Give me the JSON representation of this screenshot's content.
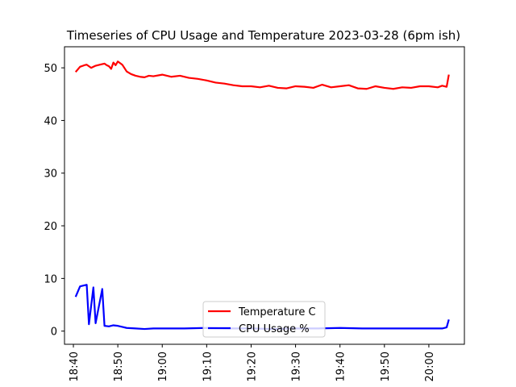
{
  "chart_data": {
    "type": "line",
    "title": "Timeseries of CPU Usage and Temperature 2023-03-28 (6pm ish)",
    "xlabel": "",
    "ylabel": "",
    "x_tick_labels": [
      "18:40",
      "18:50",
      "19:00",
      "19:10",
      "19:20",
      "19:30",
      "19:40",
      "19:50",
      "20:00"
    ],
    "y_tick_labels": [
      "0",
      "10",
      "20",
      "30",
      "40",
      "50"
    ],
    "xlim": [
      "18:38",
      "20:08"
    ],
    "ylim": [
      -2.5,
      54
    ],
    "grid": false,
    "legend_position": "bottom-center",
    "series": [
      {
        "name": "Temperature C",
        "color": "#ff0000",
        "x": [
          "18:40:30",
          "18:41:30",
          "18:42:30",
          "18:43:00",
          "18:44:00",
          "18:45:00",
          "18:46:00",
          "18:47:00",
          "18:47:30",
          "18:48:00",
          "18:48:30",
          "18:49:00",
          "18:49:30",
          "18:50:00",
          "18:51:00",
          "18:52:00",
          "18:53:00",
          "18:54:00",
          "18:55:00",
          "18:56:00",
          "18:57:00",
          "18:58:00",
          "19:00:00",
          "19:02:00",
          "19:04:00",
          "19:06:00",
          "19:08:00",
          "19:10:00",
          "19:12:00",
          "19:14:00",
          "19:16:00",
          "19:18:00",
          "19:20:00",
          "19:22:00",
          "19:24:00",
          "19:26:00",
          "19:28:00",
          "19:30:00",
          "19:32:00",
          "19:34:00",
          "19:36:00",
          "19:38:00",
          "19:40:00",
          "19:42:00",
          "19:44:00",
          "19:46:00",
          "19:48:00",
          "19:50:00",
          "19:52:00",
          "19:54:00",
          "19:56:00",
          "19:58:00",
          "20:00:00",
          "20:02:00",
          "20:03:00",
          "20:04:00",
          "20:04:30"
        ],
        "y": [
          49.2,
          50.2,
          50.5,
          50.6,
          50.0,
          50.4,
          50.6,
          50.8,
          50.5,
          50.3,
          49.8,
          51.0,
          50.5,
          51.2,
          50.6,
          49.3,
          48.8,
          48.5,
          48.3,
          48.2,
          48.5,
          48.4,
          48.7,
          48.3,
          48.5,
          48.1,
          47.9,
          47.6,
          47.2,
          47.0,
          46.7,
          46.5,
          46.5,
          46.3,
          46.6,
          46.2,
          46.1,
          46.5,
          46.4,
          46.2,
          46.8,
          46.3,
          46.5,
          46.7,
          46.1,
          46.0,
          46.5,
          46.2,
          46.0,
          46.3,
          46.2,
          46.5,
          46.5,
          46.3,
          46.6,
          46.4,
          48.7
        ]
      },
      {
        "name": "CPU Usage %",
        "color": "#0000ff",
        "x": [
          "18:40:30",
          "18:41:30",
          "18:43:00",
          "18:43:30",
          "18:44:30",
          "18:45:00",
          "18:46:30",
          "18:47:00",
          "18:48:00",
          "18:49:00",
          "18:50:00",
          "18:51:00",
          "18:52:00",
          "18:54:00",
          "18:56:00",
          "18:58:00",
          "19:00:00",
          "19:05:00",
          "19:10:00",
          "19:15:00",
          "19:20:00",
          "19:25:00",
          "19:30:00",
          "19:35:00",
          "19:40:00",
          "19:45:00",
          "19:50:00",
          "19:55:00",
          "20:00:00",
          "20:03:00",
          "20:04:00",
          "20:04:30"
        ],
        "y": [
          6.5,
          8.5,
          8.8,
          1.3,
          8.3,
          1.5,
          8.0,
          1.0,
          0.9,
          1.1,
          1.0,
          0.8,
          0.6,
          0.5,
          0.4,
          0.5,
          0.5,
          0.5,
          0.6,
          0.5,
          0.5,
          0.4,
          0.5,
          0.5,
          0.6,
          0.5,
          0.5,
          0.5,
          0.5,
          0.5,
          0.7,
          2.2
        ]
      }
    ]
  }
}
